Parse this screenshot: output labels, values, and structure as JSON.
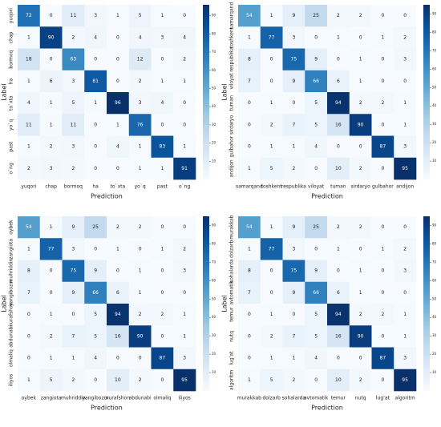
{
  "chart_data": [
    {
      "type": "heatmap",
      "x_label": "Prediction",
      "y_label": "Label",
      "colormap": "Blues",
      "categories": [
        "yuqori",
        "chap",
        "bormoq",
        "ha",
        "to`xta",
        "yo`q",
        "past",
        "o`ng"
      ],
      "values": [
        [
          72,
          0,
          11,
          3,
          1,
          5,
          1,
          0
        ],
        [
          1,
          90,
          2,
          4,
          0,
          4,
          3,
          4
        ],
        [
          18,
          0,
          63,
          0,
          0,
          12,
          0,
          2
        ],
        [
          1,
          6,
          3,
          81,
          0,
          2,
          1,
          1
        ],
        [
          4,
          1,
          5,
          1,
          96,
          3,
          4,
          0
        ],
        [
          11,
          1,
          11,
          0,
          1,
          76,
          0,
          0
        ],
        [
          1,
          2,
          3,
          0,
          4,
          1,
          83,
          1
        ],
        [
          2,
          3,
          2,
          0,
          0,
          1,
          1,
          91
        ]
      ],
      "zlim": [
        0,
        96
      ],
      "zticks": [
        10,
        20,
        30,
        40,
        50,
        60,
        70,
        80,
        90
      ]
    },
    {
      "type": "heatmap",
      "x_label": "Prediction",
      "y_label": "Label",
      "colormap": "Blues",
      "categories": [
        "samarqand",
        "toshkent",
        "respublika",
        "viloyat",
        "tuman",
        "sirdaryo",
        "gulbahor",
        "andijon"
      ],
      "values": [
        [
          54,
          1,
          9,
          25,
          2,
          2,
          0,
          0
        ],
        [
          1,
          77,
          3,
          0,
          1,
          0,
          1,
          2
        ],
        [
          8,
          0,
          75,
          9,
          0,
          1,
          0,
          3
        ],
        [
          7,
          0,
          9,
          66,
          6,
          1,
          0,
          0
        ],
        [
          0,
          1,
          0,
          5,
          94,
          2,
          2,
          1
        ],
        [
          0,
          2,
          7,
          5,
          16,
          90,
          0,
          1
        ],
        [
          0,
          1,
          1,
          4,
          0,
          0,
          87,
          3
        ],
        [
          1,
          5,
          2,
          0,
          10,
          2,
          0,
          95
        ]
      ],
      "zlim": [
        0,
        95
      ],
      "zticks": [
        10,
        20,
        30,
        40,
        50,
        60,
        70,
        80,
        90
      ]
    },
    {
      "type": "heatmap",
      "x_label": "Prediction",
      "y_label": "Label",
      "colormap": "Blues",
      "categories": [
        "oybek",
        "zangiota",
        "muhriddin",
        "yangibozor",
        "nurafshon",
        "abdunabi",
        "olmaliq",
        "iliyos"
      ],
      "values": [
        [
          54,
          1,
          9,
          25,
          2,
          2,
          0,
          0
        ],
        [
          1,
          77,
          3,
          0,
          1,
          0,
          1,
          2
        ],
        [
          8,
          0,
          75,
          9,
          0,
          1,
          0,
          3
        ],
        [
          7,
          0,
          9,
          66,
          6,
          1,
          0,
          0
        ],
        [
          0,
          1,
          0,
          5,
          94,
          2,
          2,
          1
        ],
        [
          0,
          2,
          7,
          5,
          16,
          90,
          0,
          1
        ],
        [
          0,
          1,
          1,
          4,
          0,
          0,
          87,
          3
        ],
        [
          1,
          5,
          2,
          0,
          10,
          2,
          0,
          95
        ]
      ],
      "zlim": [
        0,
        95
      ],
      "zticks": [
        10,
        20,
        30,
        40,
        50,
        60,
        70,
        80,
        90
      ]
    },
    {
      "type": "heatmap",
      "x_label": "Prediction",
      "y_label": "Label",
      "colormap": "Blues",
      "categories": [
        "murakkab",
        "dolzarb",
        "sohalarda",
        "avtomatik",
        "temur",
        "nutq",
        "lug'at",
        "algoritm"
      ],
      "values": [
        [
          54,
          1,
          9,
          25,
          2,
          2,
          0,
          0
        ],
        [
          1,
          77,
          3,
          0,
          1,
          0,
          1,
          2
        ],
        [
          8,
          0,
          75,
          9,
          0,
          1,
          0,
          3
        ],
        [
          7,
          0,
          9,
          66,
          6,
          1,
          0,
          0
        ],
        [
          0,
          1,
          0,
          5,
          94,
          2,
          2,
          1
        ],
        [
          0,
          2,
          7,
          5,
          16,
          90,
          0,
          1
        ],
        [
          0,
          1,
          1,
          4,
          0,
          0,
          87,
          3
        ],
        [
          1,
          5,
          2,
          0,
          10,
          2,
          0,
          95
        ]
      ],
      "zlim": [
        0,
        95
      ],
      "zticks": [
        10,
        20,
        30,
        40,
        50,
        60,
        70,
        80,
        90
      ]
    }
  ]
}
